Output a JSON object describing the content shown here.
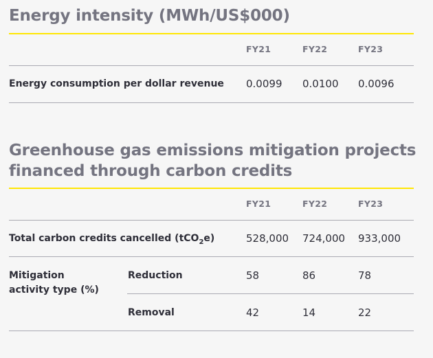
{
  "energy": {
    "title": "Energy intensity (MWh/US$000)",
    "years": [
      "FY21",
      "FY22",
      "FY23"
    ],
    "row_label": "Energy consumption per dollar revenue",
    "values": [
      "0.0099",
      "0.0100",
      "0.0096"
    ]
  },
  "ghg": {
    "title_line1": "Greenhouse gas emissions mitigation projects",
    "title_line2": "financed through carbon credits",
    "years": [
      "FY21",
      "FY22",
      "FY23"
    ],
    "total_label_pre": "Total carbon credits cancelled (tCO",
    "total_label_sub": "2",
    "total_label_post": "e)",
    "total_values": [
      "528,000",
      "724,000",
      "933,000"
    ],
    "mitigation_label_line1": "Mitigation",
    "mitigation_label_line2": "activity type (%)",
    "reduction_label": "Reduction",
    "reduction_values": [
      "58",
      "86",
      "78"
    ],
    "removal_label": "Removal",
    "removal_values": [
      "42",
      "14",
      "22"
    ]
  }
}
